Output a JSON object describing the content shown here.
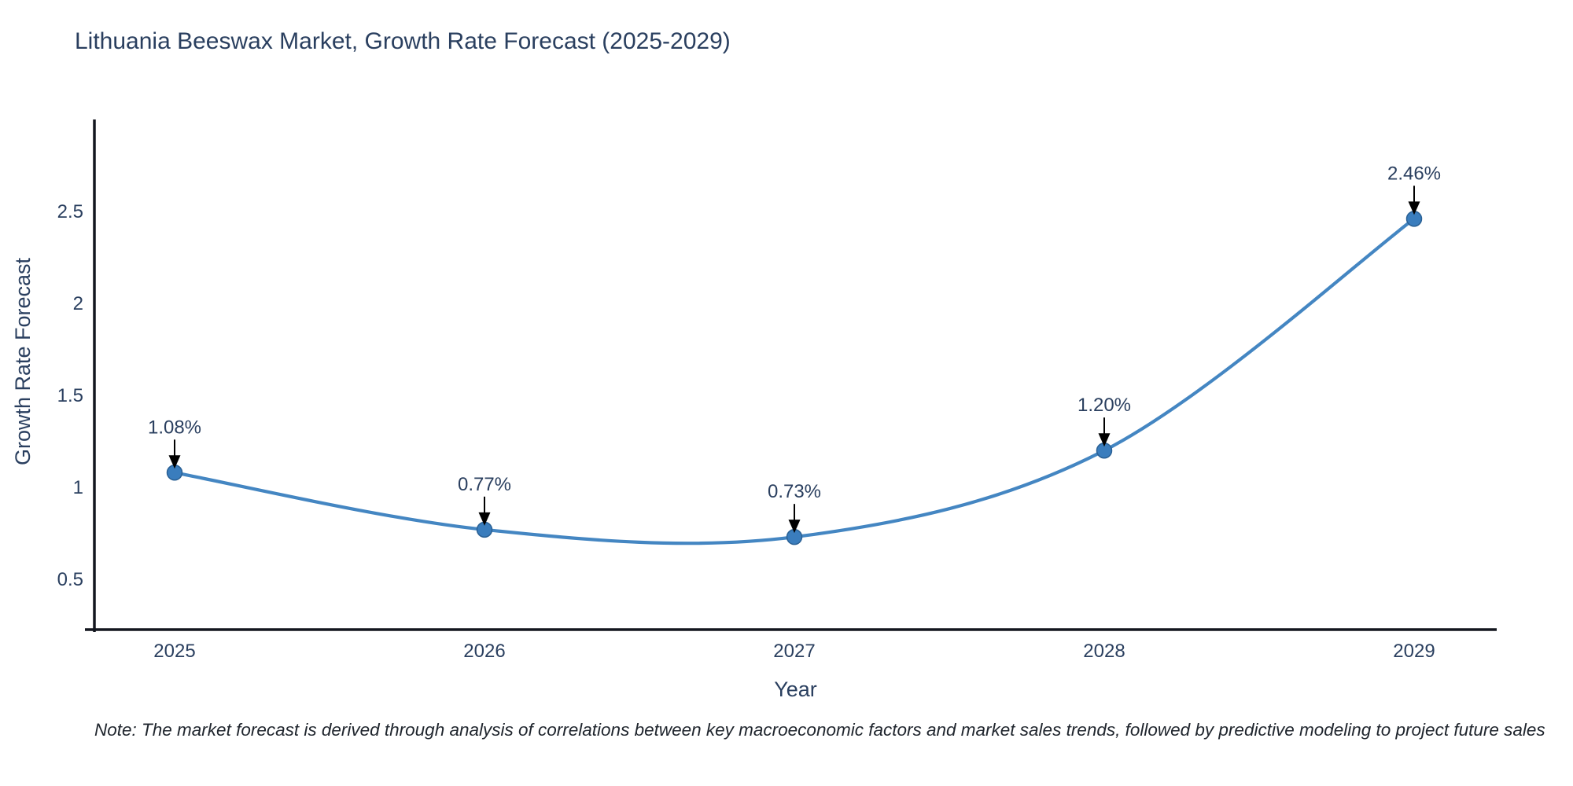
{
  "title": "Lithuania Beeswax Market, Growth Rate Forecast (2025-2029)",
  "note": "Note: The market forecast is derived through analysis of correlations between key macroeconomic factors and market sales trends, followed by predictive modeling to project future sales",
  "chart_data": {
    "type": "line",
    "line_shape": "spline",
    "categories": [
      "2025",
      "2026",
      "2027",
      "2028",
      "2029"
    ],
    "series": [
      {
        "name": "Growth Rate Forecast",
        "values": [
          1.08,
          0.77,
          0.73,
          1.2,
          2.46
        ]
      }
    ],
    "point_labels": [
      "1.08%",
      "0.77%",
      "0.73%",
      "1.20%",
      "2.46%"
    ],
    "title": "Lithuania Beeswax Market, Growth Rate Forecast (2025-2029)",
    "xlabel": "Year",
    "ylabel": "Growth Rate Forecast",
    "y_ticks": [
      0.5,
      1,
      1.5,
      2,
      2.5
    ],
    "ylim": [
      0.23,
      2.99
    ],
    "grid": false,
    "legend": "none",
    "annotations_have_arrows": true,
    "colors": {
      "line": "#4486c2",
      "marker_fill": "#3a7dbd",
      "marker_edge": "#2a6094",
      "axis_line": "#13161f",
      "tick_text": "#2a3f5f",
      "axis_title_text": "#2a3f5f",
      "annotation_text": "#2a3f5f",
      "annotation_arrow": "#000000",
      "title_text": "#2a3f5f",
      "background": "#ffffff"
    }
  }
}
